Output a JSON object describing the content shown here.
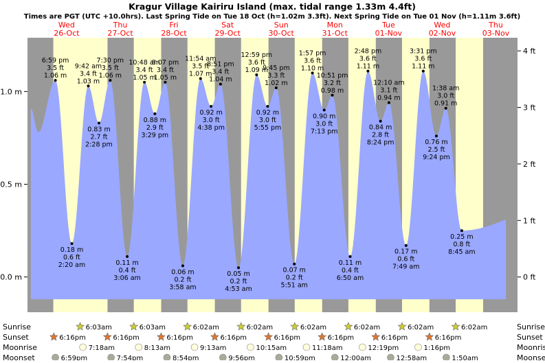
{
  "chart_data": {
    "type": "area",
    "title": "Kragur Village Kairiru Island (max. tidal range 1.33m 4.4ft)",
    "subtitle": "Times are PGT (UTC +10.0hrs). Last Spring Tide on Tue 18 Oct (h=1.02m 3.3ft). Next Spring Tide on Tue 01 Nov (h=1.11m 3.6ft)",
    "colors": {
      "day": "#ffffcc",
      "night": "#999999",
      "tide": "#9aa8ff",
      "date_text": "#ff0000",
      "text": "#000000"
    },
    "days": [
      {
        "dow": "Wed",
        "date": "26-Oct",
        "hour": 0
      },
      {
        "dow": "Thu",
        "date": "27-Oct",
        "hour": 24
      },
      {
        "dow": "Fri",
        "date": "28-Oct",
        "hour": 48
      },
      {
        "dow": "Sat",
        "date": "29-Oct",
        "hour": 72
      },
      {
        "dow": "Sun",
        "date": "30-Oct",
        "hour": 96
      },
      {
        "dow": "Mon",
        "date": "31-Oct",
        "hour": 120
      },
      {
        "dow": "Tue",
        "date": "01-Nov",
        "hour": 144
      },
      {
        "dow": "Wed",
        "date": "02-Nov",
        "hour": 168
      },
      {
        "dow": "Thu",
        "date": "03-Nov",
        "hour": 192
      }
    ],
    "x_range_hours": [
      -17.5,
      198
    ],
    "y_range_m": [
      -0.19,
      1.29
    ],
    "left_axis": {
      "unit": "m",
      "ticks": [
        {
          "v": 0.0,
          "label": "0.0 m"
        },
        {
          "v": 0.5,
          "label": "0.5 m"
        },
        {
          "v": 1.0,
          "label": "1.0 m"
        }
      ]
    },
    "right_axis": {
      "unit": "ft",
      "ticks": [
        {
          "v": 0,
          "label": "0 ft"
        },
        {
          "v": 1,
          "label": "1 ft"
        },
        {
          "v": 2,
          "label": "2 ft"
        },
        {
          "v": 3,
          "label": "3 ft"
        },
        {
          "v": 4,
          "label": "4 ft"
        }
      ]
    },
    "nights": [
      [
        -17.5,
        -5.95
      ],
      [
        18.3,
        30.05
      ],
      [
        42.3,
        54.05
      ],
      [
        66.3,
        78.03
      ],
      [
        90.3,
        102.03
      ],
      [
        114.3,
        126.03
      ],
      [
        138.3,
        150.03
      ],
      [
        162.3,
        174.03
      ],
      [
        186.3,
        198
      ]
    ],
    "tide_start_m": 0.91,
    "tide_end_m": 0.31,
    "extremes": [
      {
        "hour": -5.02,
        "m": 1.06,
        "ft": "3.5 ft",
        "m_label": "1.06 m",
        "time": "6:59 pm",
        "kind": "high"
      },
      {
        "hour": 2.33,
        "m": 0.18,
        "ft": "0.6 ft",
        "m_label": "0.18 m",
        "time": "2:20 am",
        "kind": "low"
      },
      {
        "hour": 9.7,
        "m": 1.03,
        "ft": "3.4 ft",
        "m_label": "1.03 m",
        "time": "9:42 am",
        "kind": "high"
      },
      {
        "hour": 14.47,
        "m": 0.83,
        "ft": "2.7 ft",
        "m_label": "0.83 m",
        "time": "2:28 pm",
        "kind": "low"
      },
      {
        "hour": 19.5,
        "m": 1.06,
        "ft": "3.5 ft",
        "m_label": "1.06 m",
        "time": "7:30 pm",
        "kind": "high"
      },
      {
        "hour": 27.1,
        "m": 0.11,
        "ft": "0.4 ft",
        "m_label": "0.11 m",
        "time": "3:06 am",
        "kind": "low"
      },
      {
        "hour": 34.8,
        "m": 1.05,
        "ft": "3.4 ft",
        "m_label": "1.05 m",
        "time": "10:48 am",
        "kind": "high"
      },
      {
        "hour": 39.48,
        "m": 0.88,
        "ft": "2.9 ft",
        "m_label": "0.88 m",
        "time": "3:29 pm",
        "kind": "low"
      },
      {
        "hour": 44.12,
        "m": 1.05,
        "ft": "3.4 ft",
        "m_label": "1.05 m",
        "time": "8:07 pm",
        "kind": "high"
      },
      {
        "hour": 51.97,
        "m": 0.06,
        "ft": "0.2 ft",
        "m_label": "0.06 m",
        "time": "3:58 am",
        "kind": "low"
      },
      {
        "hour": 59.9,
        "m": 1.07,
        "ft": "3.5 ft",
        "m_label": "1.07 m",
        "time": "11:54 am",
        "kind": "high"
      },
      {
        "hour": 64.63,
        "m": 0.92,
        "ft": "3.0 ft",
        "m_label": "0.92 m",
        "time": "4:38 pm",
        "kind": "low"
      },
      {
        "hour": 68.85,
        "m": 1.04,
        "ft": "3.4 ft",
        "m_label": "1.04 m",
        "time": "8:51 pm",
        "kind": "high"
      },
      {
        "hour": 76.88,
        "m": 0.05,
        "ft": "0.2 ft",
        "m_label": "0.05 m",
        "time": "4:53 am",
        "kind": "low"
      },
      {
        "hour": 84.98,
        "m": 1.09,
        "ft": "3.6 ft",
        "m_label": "1.09 m",
        "time": "12:59 pm",
        "kind": "high"
      },
      {
        "hour": 89.92,
        "m": 0.92,
        "ft": "3.0 ft",
        "m_label": "0.92 m",
        "time": "5:55 pm",
        "kind": "low"
      },
      {
        "hour": 93.75,
        "m": 1.02,
        "ft": "3.3 ft",
        "m_label": "1.02 m",
        "time": "9:45 pm",
        "kind": "high"
      },
      {
        "hour": 101.85,
        "m": 0.07,
        "ft": "0.2 ft",
        "m_label": "0.07 m",
        "time": "5:51 am",
        "kind": "low"
      },
      {
        "hour": 109.95,
        "m": 1.1,
        "ft": "3.6 ft",
        "m_label": "1.10 m",
        "time": "1:57 pm",
        "kind": "high"
      },
      {
        "hour": 115.22,
        "m": 0.9,
        "ft": "3.0 ft",
        "m_label": "0.90 m",
        "time": "7:13 pm",
        "kind": "low"
      },
      {
        "hour": 118.85,
        "m": 0.98,
        "ft": "3.2 ft",
        "m_label": "0.98 m",
        "time": "10:51 pm",
        "kind": "high"
      },
      {
        "hour": 126.83,
        "m": 0.11,
        "ft": "0.4 ft",
        "m_label": "0.11 m",
        "time": "6:50 am",
        "kind": "low"
      },
      {
        "hour": 134.8,
        "m": 1.11,
        "ft": "3.6 ft",
        "m_label": "1.11 m",
        "time": "2:48 pm",
        "kind": "high"
      },
      {
        "hour": 140.4,
        "m": 0.84,
        "ft": "2.8 ft",
        "m_label": "0.84 m",
        "time": "8:24 pm",
        "kind": "low"
      },
      {
        "hour": 144.17,
        "m": 0.94,
        "ft": "3.1 ft",
        "m_label": "0.94 m",
        "time": "12:10 am",
        "kind": "high"
      },
      {
        "hour": 151.82,
        "m": 0.17,
        "ft": "0.6 ft",
        "m_label": "0.17 m",
        "time": "7:49 am",
        "kind": "low"
      },
      {
        "hour": 159.52,
        "m": 1.11,
        "ft": "3.6 ft",
        "m_label": "1.11 m",
        "time": "3:31 pm",
        "kind": "high"
      },
      {
        "hour": 165.4,
        "m": 0.76,
        "ft": "2.5 ft",
        "m_label": "0.76 m",
        "time": "9:24 pm",
        "kind": "low"
      },
      {
        "hour": 169.63,
        "m": 0.91,
        "ft": "3.0 ft",
        "m_label": "0.91 m",
        "time": "1:38 am",
        "kind": "high"
      },
      {
        "hour": 176.75,
        "m": 0.25,
        "ft": "0.8 ft",
        "m_label": "0.25 m",
        "time": "8:45 am",
        "kind": "low"
      }
    ],
    "bottom_rows": [
      {
        "label": "Sunrise",
        "icon": "sun-icon",
        "color": "#cccc33",
        "events": [
          {
            "hour": 6.05,
            "text": "6:03am"
          },
          {
            "hour": 30.05,
            "text": "6:03am"
          },
          {
            "hour": 54.03,
            "text": "6:02am"
          },
          {
            "hour": 78.03,
            "text": "6:02am"
          },
          {
            "hour": 102.03,
            "text": "6:02am"
          },
          {
            "hour": 126.03,
            "text": "6:02am"
          },
          {
            "hour": 150.03,
            "text": "6:02am"
          },
          {
            "hour": 174.03,
            "text": "6:02am"
          }
        ]
      },
      {
        "label": "Sunset",
        "icon": "sun-icon",
        "color": "#dd7733",
        "events": [
          {
            "hour": -5.73,
            "text": "6:16pm"
          },
          {
            "hour": 18.27,
            "text": "6:16pm"
          },
          {
            "hour": 42.27,
            "text": "6:16pm"
          },
          {
            "hour": 66.27,
            "text": "6:16pm"
          },
          {
            "hour": 90.27,
            "text": "6:16pm"
          },
          {
            "hour": 114.27,
            "text": "6:16pm"
          },
          {
            "hour": 138.27,
            "text": "6:16pm"
          },
          {
            "hour": 162.27,
            "text": "6:16pm"
          }
        ]
      },
      {
        "label": "Moonrise",
        "icon": "moon-icon",
        "color": "#ffffdd",
        "events": [
          {
            "hour": 7.3,
            "text": "7:18am"
          },
          {
            "hour": 32.22,
            "text": "8:13am"
          },
          {
            "hour": 57.22,
            "text": "9:13am"
          },
          {
            "hour": 82.25,
            "text": "10:15am"
          },
          {
            "hour": 107.3,
            "text": "11:18am"
          },
          {
            "hour": 132.32,
            "text": "12:19pm"
          },
          {
            "hour": 157.27,
            "text": "1:16pm"
          }
        ]
      },
      {
        "label": "Moonset",
        "icon": "moon-icon",
        "color": "#aaaa99",
        "events": [
          {
            "hour": -5.02,
            "text": "6:59pm"
          },
          {
            "hour": 19.9,
            "text": "7:54pm"
          },
          {
            "hour": 44.9,
            "text": "8:54pm"
          },
          {
            "hour": 69.93,
            "text": "9:56pm"
          },
          {
            "hour": 94.98,
            "text": "10:59pm"
          },
          {
            "hour": 120.0,
            "text": "12:00am"
          },
          {
            "hour": 144.97,
            "text": "12:58am"
          },
          {
            "hour": 169.83,
            "text": "1:50am"
          }
        ]
      }
    ]
  }
}
